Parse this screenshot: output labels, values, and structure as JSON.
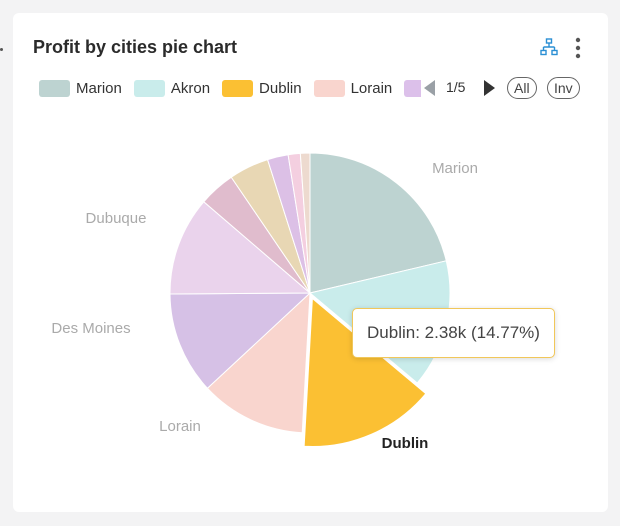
{
  "title": "Profit by cities pie chart",
  "icons": {
    "hierarchy": "hierarchy-icon",
    "more": "more-vert-icon"
  },
  "legend": {
    "items": [
      {
        "label": "Marion",
        "color": "#bdd3d1"
      },
      {
        "label": "Akron",
        "color": "#c9eceb"
      },
      {
        "label": "Dublin",
        "color": "#fbc033"
      },
      {
        "label": "Lorain",
        "color": "#f9d5ce"
      },
      {
        "label": "",
        "color": "#dcc0ea"
      }
    ],
    "page": "1/5",
    "all_label": "All",
    "inv_label": "Inv"
  },
  "tooltip": "Dublin: 2.38k (14.77%)",
  "chart_data": {
    "type": "pie",
    "title": "Profit by cities pie chart",
    "unit": "profit",
    "highlighted": "Dublin",
    "slices": [
      {
        "name": "Marion",
        "percent": 21.3,
        "color": "#bdd3d1",
        "label": "Marion"
      },
      {
        "name": "Akron",
        "percent": 14.8,
        "color": "#c9eceb",
        "label": ""
      },
      {
        "name": "Dublin",
        "value": 2380,
        "percent": 14.77,
        "color": "#fbc033",
        "label": "Dublin"
      },
      {
        "name": "Lorain",
        "percent": 12.2,
        "color": "#f9d5ce",
        "label": "Lorain"
      },
      {
        "name": "Des Moines",
        "percent": 11.8,
        "color": "#d6c1e6",
        "label": "Des Moines"
      },
      {
        "name": "Dubuque",
        "percent": 11.4,
        "color": "#ead3ec",
        "label": "Dubuque"
      },
      {
        "name": "",
        "percent": 4.2,
        "color": "#e0bccd",
        "label": ""
      },
      {
        "name": "",
        "percent": 4.6,
        "color": "#e8d7b4",
        "label": ""
      },
      {
        "name": "",
        "percent": 2.4,
        "color": "#dcc0e6",
        "label": ""
      },
      {
        "name": "",
        "percent": 1.4,
        "color": "#f4cfe0",
        "label": ""
      },
      {
        "name": "",
        "percent": 1.1,
        "color": "#eddacf",
        "label": ""
      }
    ]
  }
}
